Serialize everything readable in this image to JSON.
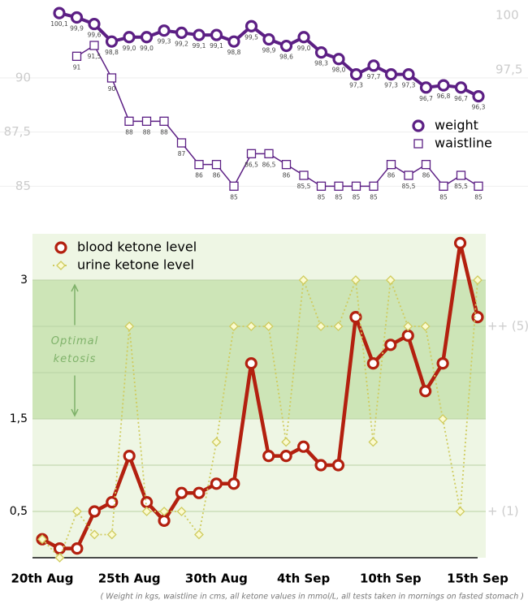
{
  "chart_data": [
    {
      "type": "line",
      "categories": [
        null,
        null,
        null,
        null,
        null,
        null,
        null,
        null,
        null,
        null,
        null,
        null,
        null,
        null,
        null,
        null,
        null,
        null,
        null,
        null,
        null,
        null,
        null,
        null,
        null
      ],
      "series": [
        {
          "name": "weight",
          "color": "#5c1f84",
          "marker": "circle",
          "axis": "y2",
          "values": [
            100.1,
            99.9,
            99.6,
            98.8,
            99.0,
            99.0,
            99.3,
            99.2,
            99.1,
            99.1,
            98.8,
            99.5,
            98.9,
            98.6,
            99.0,
            98.3,
            98.0,
            97.3,
            97.7,
            97.3,
            97.3,
            96.7,
            96.8,
            96.7,
            96.3
          ],
          "value_labels": [
            "100,1",
            "99,9",
            "99,6",
            "98,8",
            "99,0",
            "99,0",
            "99,3",
            "99,2",
            "99,1",
            "99,1",
            "98,8",
            "99,5",
            "98,9",
            "98,6",
            "99,0",
            "98,3",
            "98,0",
            "97,3",
            "97,7",
            "97,3",
            "97,3",
            "96,7",
            "96,8",
            "96,7",
            "96,3"
          ]
        },
        {
          "name": "waistline",
          "color": "#5c1f84",
          "marker": "square",
          "axis": "y",
          "values": [
            null,
            91,
            91.5,
            90,
            88,
            88,
            88,
            87,
            86,
            86,
            85,
            86.5,
            86.5,
            86,
            85.5,
            85,
            85,
            85,
            85,
            86,
            85.5,
            86,
            85,
            85.5,
            85
          ],
          "value_labels": [
            null,
            "91",
            "91,5",
            "90",
            "88",
            "88",
            "88",
            "87",
            "86",
            "86",
            "85",
            "86,5",
            "86,5",
            "86",
            "85,5",
            "85",
            "85",
            "85",
            "85",
            "86",
            "85,5",
            "86",
            "85",
            "85,5",
            "85"
          ]
        }
      ],
      "ylim": [
        84.6,
        93.3
      ],
      "yticks": [
        85,
        {
          "value": 87.5,
          "label": "87,5"
        },
        90
      ],
      "y2lim": [
        91.8,
        100.4
      ],
      "y2ticks": [
        {
          "value": 97.5,
          "label": "97,5"
        },
        100
      ],
      "grid": true,
      "legend": "center right"
    },
    {
      "type": "line",
      "categories": [
        "20th Aug",
        null,
        null,
        null,
        null,
        "25th Aug",
        null,
        null,
        null,
        null,
        "30th Aug",
        null,
        null,
        null,
        null,
        "4th Sep",
        null,
        null,
        null,
        null,
        "10th Sep",
        null,
        null,
        null,
        null,
        "15th Sep"
      ],
      "series": [
        {
          "name": "blood ketone level",
          "color": "#b3200f",
          "marker": "circle",
          "axis": "y",
          "values": [
            0.2,
            0.1,
            0.1,
            0.5,
            0.6,
            1.1,
            0.6,
            0.4,
            0.7,
            0.7,
            0.8,
            0.8,
            2.1,
            1.1,
            1.1,
            1.2,
            1.0,
            1.0,
            2.6,
            2.1,
            2.3,
            2.4,
            1.8,
            2.1,
            3.4,
            2.6
          ]
        },
        {
          "name": "urine ketone level",
          "color": "#cfcb5e",
          "marker": "diamond",
          "axis": "y",
          "dashed": true,
          "values": [
            0.2,
            0,
            0.5,
            0.25,
            0.25,
            2.5,
            0.5,
            0.5,
            0.5,
            0.25,
            1.25,
            2.5,
            2.5,
            2.5,
            1.25,
            3,
            2.5,
            2.5,
            3,
            1.25,
            3,
            2.5,
            2.5,
            1.5,
            0.5,
            3
          ]
        }
      ],
      "ylim": [
        0,
        3.5
      ],
      "yticks": [
        {
          "value": 0.5,
          "label": "0,5"
        },
        {
          "value": 1.5,
          "label": "1,5"
        },
        3
      ],
      "minor_yticks": [
        1,
        2,
        2.5
      ],
      "y2lim": [
        0,
        3.5
      ],
      "y2ticks": [
        {
          "value": 2.5,
          "label": "++ (5)"
        },
        {
          "value": 0.5,
          "label": "+ (1)"
        }
      ],
      "grid": true,
      "legend": "upper left",
      "background_color": "#eef6e4",
      "band": {
        "range": [
          1.5,
          3
        ],
        "color": "#cde5b7",
        "annotation": [
          "Optimal",
          "ketosis"
        ]
      }
    }
  ],
  "footnote": "( Weight in kgs, waistline in cms, all ketone values in mmol/L, all tests taken in mornings on fasted stomach )"
}
